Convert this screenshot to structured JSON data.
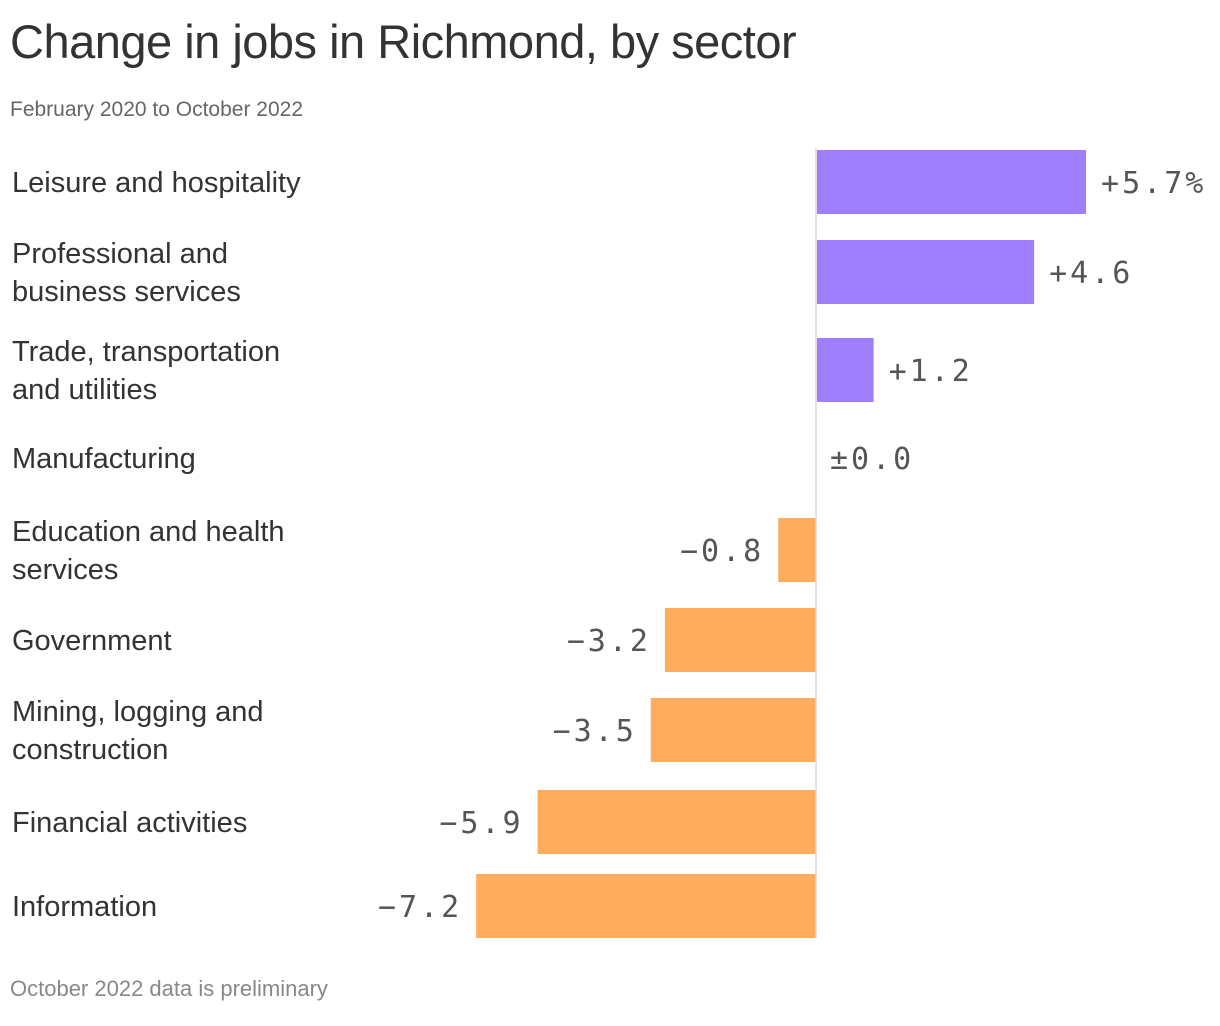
{
  "header": {
    "title": "Change in jobs in Richmond, by sector",
    "subtitle": "February 2020 to October 2022"
  },
  "footer": {
    "note": "October 2022 data is preliminary"
  },
  "colors": {
    "positive": "#a07ffe",
    "negative": "#ffad5c",
    "axis": "#d9d9d9"
  },
  "chart_data": {
    "type": "bar",
    "orientation": "horizontal",
    "title": "Change in jobs in Richmond, by sector",
    "subtitle": "February 2020 to October 2022",
    "unit": "%",
    "categories": [
      "Leisure and hospitality",
      "Professional and business services",
      "Trade, transportation and utilities",
      "Manufacturing",
      "Education and health services",
      "Government",
      "Mining, logging and construction",
      "Financial activities",
      "Information"
    ],
    "category_lines": [
      [
        "Leisure and hospitality"
      ],
      [
        "Professional and",
        "business services"
      ],
      [
        "Trade, transportation",
        "and utilities"
      ],
      [
        "Manufacturing"
      ],
      [
        "Education and health",
        "services"
      ],
      [
        "Government"
      ],
      [
        "Mining, logging and",
        "construction"
      ],
      [
        "Financial activities"
      ],
      [
        "Information"
      ]
    ],
    "values": [
      5.7,
      4.6,
      1.2,
      0.0,
      -0.8,
      -3.2,
      -3.5,
      -5.9,
      -7.2
    ],
    "value_labels": [
      "+5.7%",
      "+4.6",
      "+1.2",
      "±0.0",
      "−0.8",
      "−3.2",
      "−3.5",
      "−5.9",
      "−7.2"
    ],
    "xlim": [
      -7.2,
      5.7
    ],
    "grid": false,
    "legend": "none"
  }
}
